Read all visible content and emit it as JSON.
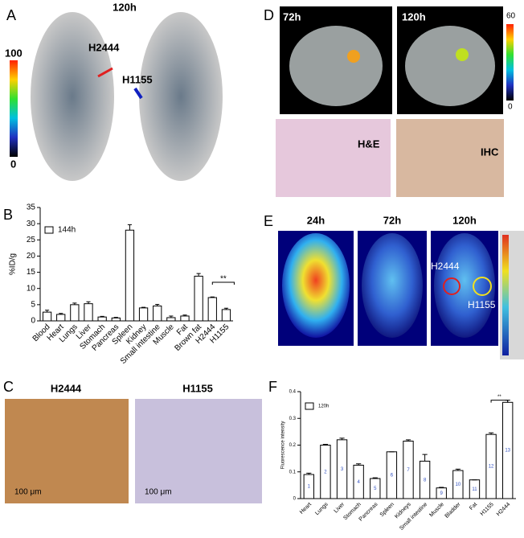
{
  "panels": {
    "A": {
      "letter": "A",
      "time": "120h",
      "tumor_labels": [
        "H2444",
        "H1155"
      ],
      "scale": [
        "100",
        "0"
      ]
    },
    "D": {
      "letter": "D",
      "times": [
        "72h",
        "120h"
      ],
      "scale": [
        "60",
        "0"
      ],
      "stains": [
        "H&E",
        "IHC"
      ]
    },
    "E": {
      "letter": "E",
      "times": [
        "24h",
        "72h",
        "120h"
      ],
      "tumor_labels": [
        "H2444",
        "H1155"
      ]
    },
    "C": {
      "letter": "C",
      "titles": [
        "H2444",
        "H1155"
      ],
      "scale_bars": [
        "100 μm",
        "100 μm"
      ]
    }
  },
  "chart_data": [
    {
      "type": "bar",
      "panel": "B",
      "y_label": "%ID/g",
      "legend": "144h",
      "annotation": "**",
      "color": "#ffffff",
      "categories": [
        "Blood",
        "Heart",
        "Lungs",
        "Liver",
        "Stomach",
        "Pancreas",
        "Spleen",
        "Kidney",
        "Small intestine",
        "Muscle",
        "Fat",
        "Brown fat",
        "H2444",
        "H1155"
      ],
      "values": [
        2.7,
        2.0,
        5.0,
        5.3,
        1.2,
        0.9,
        28.0,
        4.0,
        4.6,
        1.0,
        1.5,
        13.8,
        7.2,
        3.5
      ],
      "errors": [
        0.6,
        0.3,
        0.5,
        0.6,
        0.2,
        0.2,
        1.7,
        0.2,
        0.5,
        0.5,
        0.3,
        0.8,
        0.2,
        0.4
      ],
      "ylim": [
        0,
        35
      ],
      "yticks": [
        0,
        5,
        10,
        15,
        20,
        25,
        30,
        35
      ]
    },
    {
      "type": "bar",
      "panel": "F",
      "y_label": "Fluorescence intensity",
      "legend": "120h",
      "annotation": "**",
      "color": "#ffffff",
      "categories": [
        "Heart",
        "Lungs",
        "Liver",
        "Stomach",
        "Pancreas",
        "Spleen",
        "Kidneys",
        "Small intestine",
        "Muscle",
        "Bladder",
        "Fat",
        "H1155",
        "H2444"
      ],
      "values": [
        0.09,
        0.2,
        0.22,
        0.125,
        0.075,
        0.175,
        0.215,
        0.14,
        0.04,
        0.105,
        0.07,
        0.24,
        0.36
      ],
      "errors": [
        0.005,
        0.003,
        0.006,
        0.005,
        0.003,
        0,
        0.005,
        0.025,
        0.002,
        0.005,
        0,
        0.006,
        0.008
      ],
      "bar_labels": [
        "1",
        "2",
        "3",
        "4",
        "5",
        "6",
        "7",
        "8",
        "9",
        "10",
        "11",
        "12",
        "13"
      ],
      "ylim": [
        0,
        0.4
      ],
      "yticks": [
        0,
        0.1,
        0.2,
        0.3,
        0.4
      ]
    }
  ]
}
